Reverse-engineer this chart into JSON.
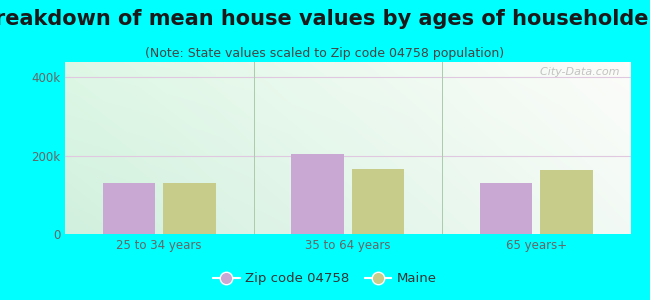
{
  "title": "Breakdown of mean house values by ages of householders",
  "subtitle": "(Note: State values scaled to Zip code 04758 population)",
  "categories": [
    "25 to 34 years",
    "35 to 64 years",
    "65 years+"
  ],
  "zip_values": [
    130000,
    205000,
    130000
  ],
  "state_values": [
    130000,
    165000,
    162000
  ],
  "zip_color": "#c9a8d4",
  "state_color": "#c8cc8a",
  "background_outer": "#00ffff",
  "ylim": [
    0,
    440000
  ],
  "yticks": [
    0,
    200000,
    400000
  ],
  "ytick_labels": [
    "0",
    "200k",
    "400k"
  ],
  "watermark": "  City-Data.com",
  "legend_zip_label": "Zip code 04758",
  "legend_state_label": "Maine",
  "title_fontsize": 15,
  "subtitle_fontsize": 9,
  "bar_width": 0.28,
  "group_positions": [
    1,
    2,
    3
  ],
  "grid_color": "#e0c8e0",
  "divider_color": "#aaccaa",
  "tick_color": "#666666",
  "title_color": "#1a1a1a",
  "subtitle_color": "#444444"
}
